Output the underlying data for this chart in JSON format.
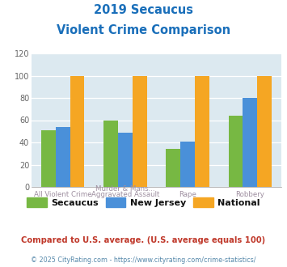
{
  "title_line1": "2019 Secaucus",
  "title_line2": "Violent Crime Comparison",
  "title_color": "#1a6fba",
  "xtick_top": [
    "",
    "Murder & Mans...",
    "",
    ""
  ],
  "xtick_bottom": [
    "All Violent Crime",
    "Aggravated Assault",
    "Rape",
    "Robbery"
  ],
  "secaucus": [
    51,
    60,
    34,
    64
  ],
  "new_jersey": [
    54,
    49,
    41,
    80
  ],
  "national": [
    100,
    100,
    100,
    100
  ],
  "color_secaucus": "#77b843",
  "color_nj": "#4a90d9",
  "color_national": "#f5a623",
  "ylim": [
    0,
    120
  ],
  "yticks": [
    0,
    20,
    40,
    60,
    80,
    100,
    120
  ],
  "plot_bg": "#dce9f0",
  "fig_bg": "#ffffff",
  "legend_labels": [
    "Secaucus",
    "New Jersey",
    "National"
  ],
  "footnote1": "Compared to U.S. average. (U.S. average equals 100)",
  "footnote2": "© 2025 CityRating.com - https://www.cityrating.com/crime-statistics/",
  "footnote1_color": "#c0392b",
  "footnote2_color": "#5588aa"
}
